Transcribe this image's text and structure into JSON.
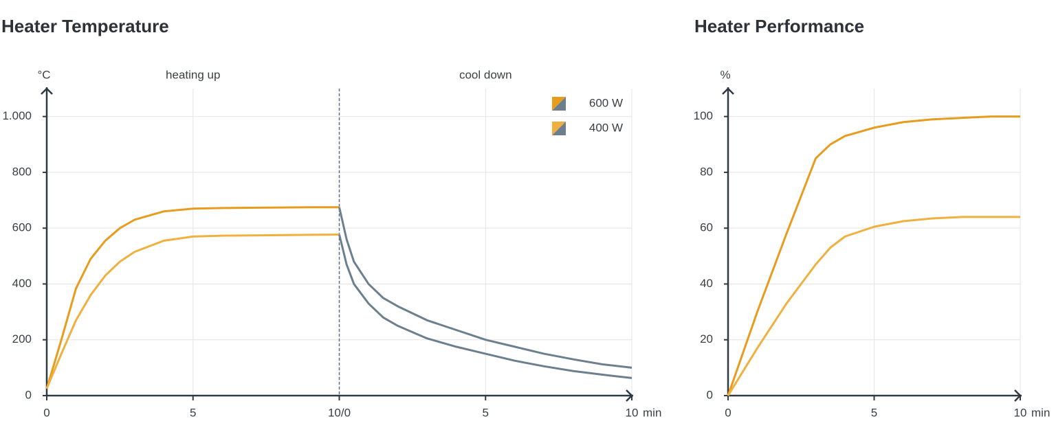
{
  "chart_data": [
    {
      "type": "line",
      "title": "Heater Temperature",
      "y_unit": "°C",
      "x_unit": "min",
      "annotations": [
        "heating up",
        "cool down"
      ],
      "divider_x": 10,
      "x": [
        0,
        0.5,
        1,
        1.5,
        2,
        2.5,
        3,
        4,
        5,
        6,
        7,
        8,
        9,
        10,
        10.25,
        10.5,
        11,
        11.5,
        12,
        13,
        14,
        15,
        16,
        17,
        18,
        19,
        20
      ],
      "series": [
        {
          "name": "600 W",
          "colors": [
            "#e89c1e",
            "#6c7f8d"
          ],
          "values": [
            25,
            200,
            384,
            490,
            555,
            600,
            630,
            660,
            670,
            672,
            673,
            674,
            675,
            675,
            560,
            480,
            400,
            350,
            320,
            270,
            235,
            200,
            175,
            150,
            130,
            112,
            100
          ]
        },
        {
          "name": "400 W",
          "colors": [
            "#f0b040",
            "#6c7f8d"
          ],
          "values": [
            25,
            150,
            270,
            360,
            430,
            480,
            515,
            555,
            570,
            573,
            574,
            575,
            576,
            577,
            470,
            400,
            330,
            280,
            250,
            205,
            175,
            150,
            125,
            105,
            88,
            75,
            63
          ]
        }
      ],
      "xlim": [
        0,
        20
      ],
      "xticks": [
        0,
        5,
        {
          "value": 10,
          "label": "10/0"
        },
        {
          "value": 15,
          "label": "5"
        },
        {
          "value": 20,
          "label": "10"
        }
      ],
      "ylim": [
        0,
        1100
      ],
      "yticks": [
        0,
        200,
        400,
        600,
        800,
        {
          "value": 1000,
          "label": "1.000"
        }
      ],
      "grid": true,
      "legend": "upper right"
    },
    {
      "type": "line",
      "title": "Heater Performance",
      "y_unit": "%",
      "x_unit": "min",
      "x": [
        0,
        1,
        2,
        3,
        3.5,
        4,
        5,
        6,
        7,
        8,
        9,
        10
      ],
      "series": [
        {
          "name": "600 W",
          "color": "#e89c1e",
          "values": [
            0,
            30,
            58,
            85,
            90,
            93,
            96,
            98,
            99,
            99.5,
            100,
            100
          ]
        },
        {
          "name": "400 W",
          "color": "#f0b040",
          "values": [
            0,
            17,
            33,
            47,
            53,
            57,
            60.5,
            62.5,
            63.5,
            64,
            64,
            64
          ]
        }
      ],
      "xlim": [
        0,
        10
      ],
      "xticks": [
        0,
        5,
        10
      ],
      "ylim": [
        0,
        110
      ],
      "yticks": [
        0,
        20,
        40,
        60,
        80,
        100
      ],
      "grid": true
    }
  ]
}
